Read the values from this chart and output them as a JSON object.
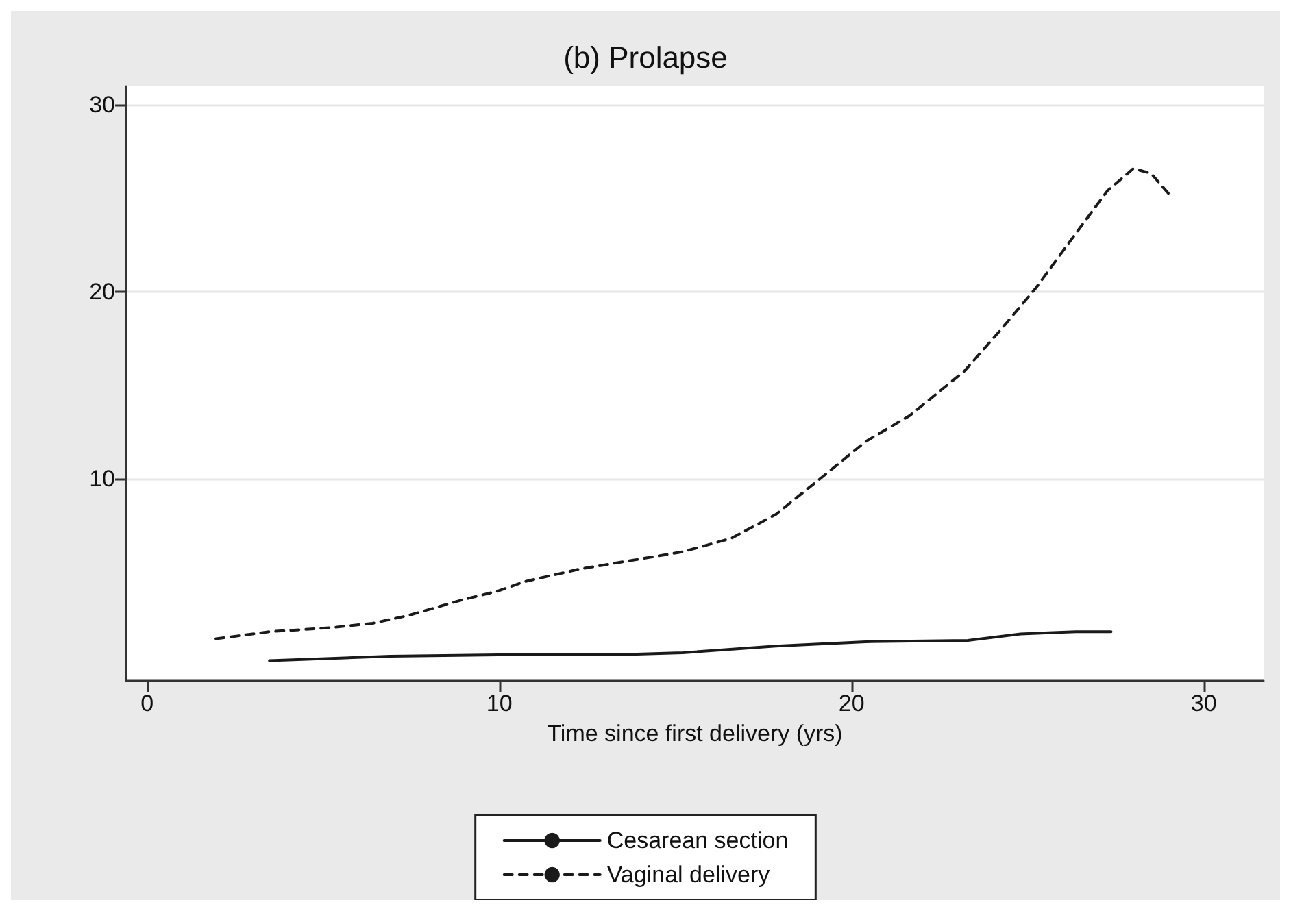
{
  "chart_data": {
    "type": "line",
    "title": "(b) Prolapse",
    "xlabel": "Time since first delivery (yrs)",
    "xlim": [
      -0.6,
      31.7
    ],
    "xticks": [
      0,
      10,
      20,
      30
    ],
    "ylim": [
      -0.8,
      31
    ],
    "yticks": [
      10,
      20,
      30
    ],
    "grid": "y",
    "legend": "bottom",
    "marker": "none",
    "series": [
      {
        "name": "Cesarean section",
        "color": "#1a1a1a",
        "line_style": "solid",
        "x": [
          3.47,
          6.9,
          9.96,
          13.25,
          15.2,
          17.85,
          20.4,
          23.3,
          24.8,
          26.37,
          27.37
        ],
        "values": [
          0.28,
          0.52,
          0.59,
          0.59,
          0.7,
          1.06,
          1.29,
          1.36,
          1.71,
          1.83,
          1.83
        ]
      },
      {
        "name": "Vaginal delivery",
        "color": "#1a1a1a",
        "line_style": "dashed",
        "x": [
          1.95,
          3.47,
          5.25,
          6.4,
          7.42,
          8.94,
          9.96,
          10.7,
          12.25,
          13.9,
          15.2,
          16.58,
          17.85,
          19.1,
          20.4,
          21.66,
          23.2,
          24.2,
          25.23,
          26.24,
          27.26,
          28.0,
          28.5,
          29.1
        ],
        "values": [
          1.45,
          1.83,
          2.05,
          2.28,
          2.7,
          3.53,
          4.0,
          4.5,
          5.17,
          5.69,
          6.1,
          6.82,
          8.1,
          10.0,
          12.0,
          13.4,
          15.76,
          17.9,
          20.2,
          22.8,
          25.4,
          26.6,
          26.35,
          25.05
        ]
      }
    ]
  }
}
